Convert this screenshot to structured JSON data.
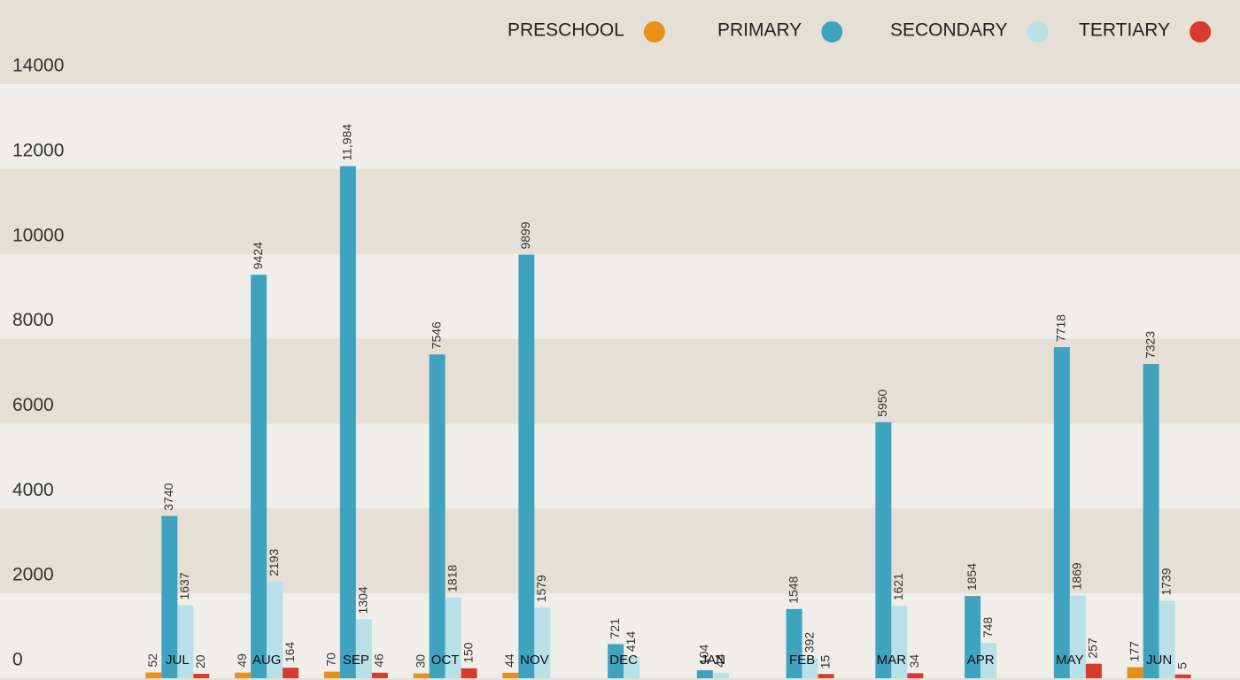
{
  "chart_data": {
    "type": "bar",
    "categories": [
      "JUL",
      "AUG",
      "SEP",
      "OCT",
      "NOV",
      "DEC",
      "JAN",
      "FEB",
      "MAR",
      "APR",
      "MAY",
      "JUN"
    ],
    "series": [
      {
        "name": "PRESCHOOL",
        "color": "#e8901a",
        "values": [
          52,
          49,
          70,
          30,
          44,
          null,
          null,
          null,
          null,
          null,
          null,
          177
        ]
      },
      {
        "name": "PRIMARY",
        "color": "#3fa3c0",
        "values": [
          3740,
          9424,
          11984,
          7546,
          9899,
          721,
          104,
          1548,
          5950,
          1854,
          7718,
          7323
        ],
        "value_labels": [
          "3740",
          "9424",
          "11,984",
          "7546",
          "9899",
          "721",
          "104",
          "1548",
          "5950",
          "1854",
          "7718",
          "7323"
        ]
      },
      {
        "name": "SECONDARY",
        "color": "#b8e0e8",
        "values": [
          1637,
          2193,
          1304,
          1818,
          1579,
          414,
          44,
          392,
          1621,
          748,
          1869,
          1739
        ]
      },
      {
        "name": "TERTIARY",
        "color": "#d63b2b",
        "values": [
          20,
          164,
          46,
          150,
          null,
          null,
          null,
          15,
          34,
          null,
          257,
          5
        ]
      }
    ],
    "ylim": [
      0,
      14000
    ],
    "yticks": [
      0,
      2000,
      4000,
      6000,
      8000,
      10000,
      12000,
      14000
    ],
    "band_colors": [
      "#f0eee9",
      "#e5dfd5"
    ],
    "legend": "top-right"
  }
}
